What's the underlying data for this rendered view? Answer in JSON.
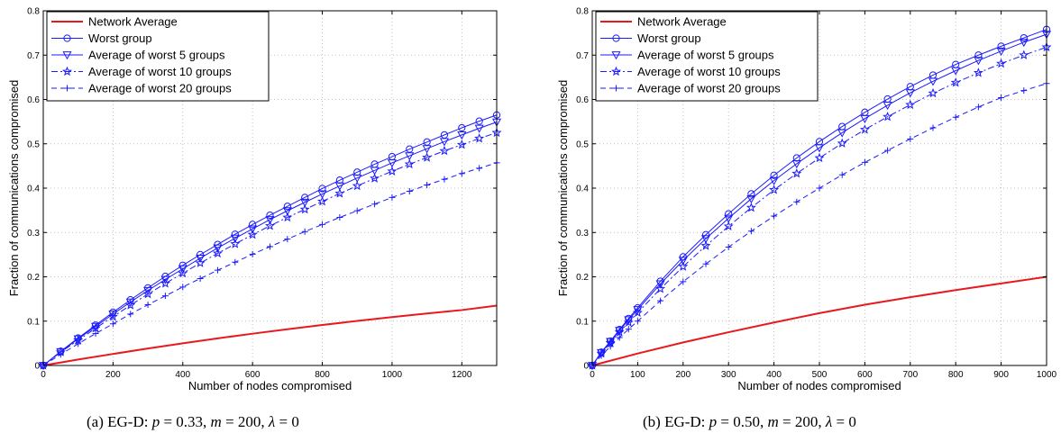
{
  "colors": {
    "network": "#e8191e",
    "groups": "#1a1aff",
    "grid": "#b0b0b0"
  },
  "chart_data": [
    {
      "type": "line",
      "xlabel": "Number of nodes compromised",
      "ylabel": "Fraction of communications compromised",
      "xlim": [
        0,
        1300
      ],
      "ylim": [
        0,
        0.8
      ],
      "xticks": [
        0,
        200,
        400,
        600,
        800,
        1000,
        1200
      ],
      "yticks": [
        0,
        0.1,
        0.2,
        0.3,
        0.4,
        0.5,
        0.6,
        0.7,
        0.8
      ],
      "grid": true,
      "legend_position": "top-left",
      "caption": {
        "prefix": "(a) EG-D: ",
        "p_value": "0.33",
        "m_value": "200",
        "lambda_value": "0"
      },
      "series": [
        {
          "name": "Network Average",
          "style": "solid",
          "marker": "none",
          "x": [
            0,
            100,
            200,
            300,
            400,
            500,
            600,
            700,
            800,
            900,
            1000,
            1100,
            1200,
            1300
          ],
          "y": [
            0,
            0.0134,
            0.026,
            0.0383,
            0.05,
            0.0612,
            0.0717,
            0.0818,
            0.0914,
            0.1004,
            0.1091,
            0.1172,
            0.125,
            0.135
          ]
        },
        {
          "name": "Worst group",
          "style": "solid",
          "marker": "circle",
          "x": [
            0,
            50,
            100,
            150,
            200,
            250,
            300,
            350,
            400,
            450,
            500,
            550,
            600,
            650,
            700,
            750,
            800,
            850,
            900,
            950,
            1000,
            1050,
            1100,
            1150,
            1200,
            1250,
            1300
          ],
          "y": [
            0,
            0.032,
            0.062,
            0.091,
            0.12,
            0.148,
            0.175,
            0.201,
            0.226,
            0.25,
            0.273,
            0.296,
            0.318,
            0.339,
            0.359,
            0.379,
            0.399,
            0.418,
            0.436,
            0.454,
            0.471,
            0.488,
            0.504,
            0.52,
            0.536,
            0.551,
            0.565
          ]
        },
        {
          "name": "Average of worst 5 groups",
          "style": "solid",
          "marker": "triangle-down",
          "x": [
            0,
            50,
            100,
            150,
            200,
            250,
            300,
            350,
            400,
            450,
            500,
            550,
            600,
            650,
            700,
            750,
            800,
            850,
            900,
            950,
            1000,
            1050,
            1100,
            1150,
            1200,
            1250,
            1300
          ],
          "y": [
            0,
            0.031,
            0.06,
            0.088,
            0.116,
            0.143,
            0.169,
            0.194,
            0.218,
            0.242,
            0.265,
            0.287,
            0.308,
            0.329,
            0.349,
            0.368,
            0.387,
            0.405,
            0.423,
            0.44,
            0.457,
            0.473,
            0.489,
            0.505,
            0.52,
            0.535,
            0.549
          ]
        },
        {
          "name": "Average of worst 10 groups",
          "style": "dashdot",
          "marker": "star",
          "x": [
            0,
            50,
            100,
            150,
            200,
            250,
            300,
            350,
            400,
            450,
            500,
            550,
            600,
            650,
            700,
            750,
            800,
            850,
            900,
            950,
            1000,
            1050,
            1100,
            1150,
            1200,
            1250,
            1300
          ],
          "y": [
            0,
            0.03,
            0.057,
            0.084,
            0.11,
            0.136,
            0.161,
            0.185,
            0.208,
            0.231,
            0.253,
            0.274,
            0.295,
            0.315,
            0.334,
            0.352,
            0.37,
            0.388,
            0.405,
            0.422,
            0.438,
            0.454,
            0.469,
            0.484,
            0.498,
            0.512,
            0.525
          ]
        },
        {
          "name": "Average of worst 20 groups",
          "style": "dashed",
          "marker": "plus",
          "x": [
            0,
            50,
            100,
            150,
            200,
            250,
            300,
            350,
            400,
            450,
            500,
            550,
            600,
            650,
            700,
            750,
            800,
            850,
            900,
            950,
            1000,
            1050,
            1100,
            1150,
            1200,
            1250,
            1300
          ],
          "y": [
            0,
            0.025,
            0.049,
            0.072,
            0.094,
            0.116,
            0.137,
            0.157,
            0.177,
            0.196,
            0.215,
            0.233,
            0.251,
            0.268,
            0.285,
            0.302,
            0.318,
            0.334,
            0.349,
            0.364,
            0.379,
            0.393,
            0.407,
            0.42,
            0.433,
            0.445,
            0.457
          ]
        }
      ]
    },
    {
      "type": "line",
      "xlabel": "Number of nodes compromised",
      "ylabel": "Fraction of communications compromised",
      "xlim": [
        0,
        1000
      ],
      "ylim": [
        0,
        0.8
      ],
      "xticks": [
        0,
        100,
        200,
        300,
        400,
        500,
        600,
        700,
        800,
        900,
        1000
      ],
      "yticks": [
        0,
        0.1,
        0.2,
        0.3,
        0.4,
        0.5,
        0.6,
        0.7,
        0.8
      ],
      "grid": true,
      "legend_position": "top-left",
      "caption": {
        "prefix": "(b) EG-D: ",
        "p_value": "0.50",
        "m_value": "200",
        "lambda_value": "0"
      },
      "series": [
        {
          "name": "Network Average",
          "style": "solid",
          "marker": "none",
          "x": [
            0,
            100,
            200,
            300,
            400,
            500,
            600,
            700,
            800,
            900,
            1000
          ],
          "y": [
            0,
            0.027,
            0.052,
            0.075,
            0.097,
            0.118,
            0.137,
            0.154,
            0.17,
            0.185,
            0.2
          ]
        },
        {
          "name": "Worst group",
          "style": "solid",
          "marker": "circle",
          "x": [
            0,
            20,
            40,
            60,
            80,
            100,
            150,
            200,
            250,
            300,
            350,
            400,
            450,
            500,
            550,
            600,
            650,
            700,
            750,
            800,
            850,
            900,
            950,
            1000
          ],
          "y": [
            0,
            0.03,
            0.055,
            0.081,
            0.106,
            0.13,
            0.19,
            0.245,
            0.295,
            0.342,
            0.387,
            0.429,
            0.468,
            0.505,
            0.539,
            0.571,
            0.601,
            0.629,
            0.655,
            0.679,
            0.7,
            0.72,
            0.739,
            0.758
          ]
        },
        {
          "name": "Average of worst 5 groups",
          "style": "solid",
          "marker": "triangle-down",
          "x": [
            0,
            20,
            40,
            60,
            80,
            100,
            150,
            200,
            250,
            300,
            350,
            400,
            450,
            500,
            550,
            600,
            650,
            700,
            750,
            800,
            850,
            900,
            950,
            1000
          ],
          "y": [
            0,
            0.029,
            0.054,
            0.079,
            0.103,
            0.126,
            0.184,
            0.237,
            0.286,
            0.332,
            0.376,
            0.417,
            0.455,
            0.491,
            0.525,
            0.557,
            0.587,
            0.615,
            0.641,
            0.665,
            0.688,
            0.709,
            0.729,
            0.747
          ]
        },
        {
          "name": "Average of worst 10 groups",
          "style": "dashdot",
          "marker": "star",
          "x": [
            0,
            20,
            40,
            60,
            80,
            100,
            150,
            200,
            250,
            300,
            350,
            400,
            450,
            500,
            550,
            600,
            650,
            700,
            750,
            800,
            850,
            900,
            950,
            1000
          ],
          "y": [
            0,
            0.027,
            0.051,
            0.075,
            0.097,
            0.119,
            0.173,
            0.223,
            0.27,
            0.314,
            0.356,
            0.396,
            0.433,
            0.468,
            0.501,
            0.532,
            0.561,
            0.588,
            0.614,
            0.638,
            0.66,
            0.681,
            0.7,
            0.718
          ]
        },
        {
          "name": "Average of worst 20 groups",
          "style": "dashed",
          "marker": "plus",
          "x": [
            0,
            20,
            40,
            60,
            80,
            100,
            150,
            200,
            250,
            300,
            350,
            400,
            450,
            500,
            550,
            600,
            650,
            700,
            750,
            800,
            850,
            900,
            950,
            1000
          ],
          "y": [
            0,
            0.022,
            0.043,
            0.063,
            0.082,
            0.1,
            0.146,
            0.189,
            0.229,
            0.267,
            0.303,
            0.337,
            0.369,
            0.4,
            0.43,
            0.458,
            0.485,
            0.511,
            0.536,
            0.56,
            0.583,
            0.604,
            0.62,
            0.636
          ]
        }
      ]
    }
  ]
}
